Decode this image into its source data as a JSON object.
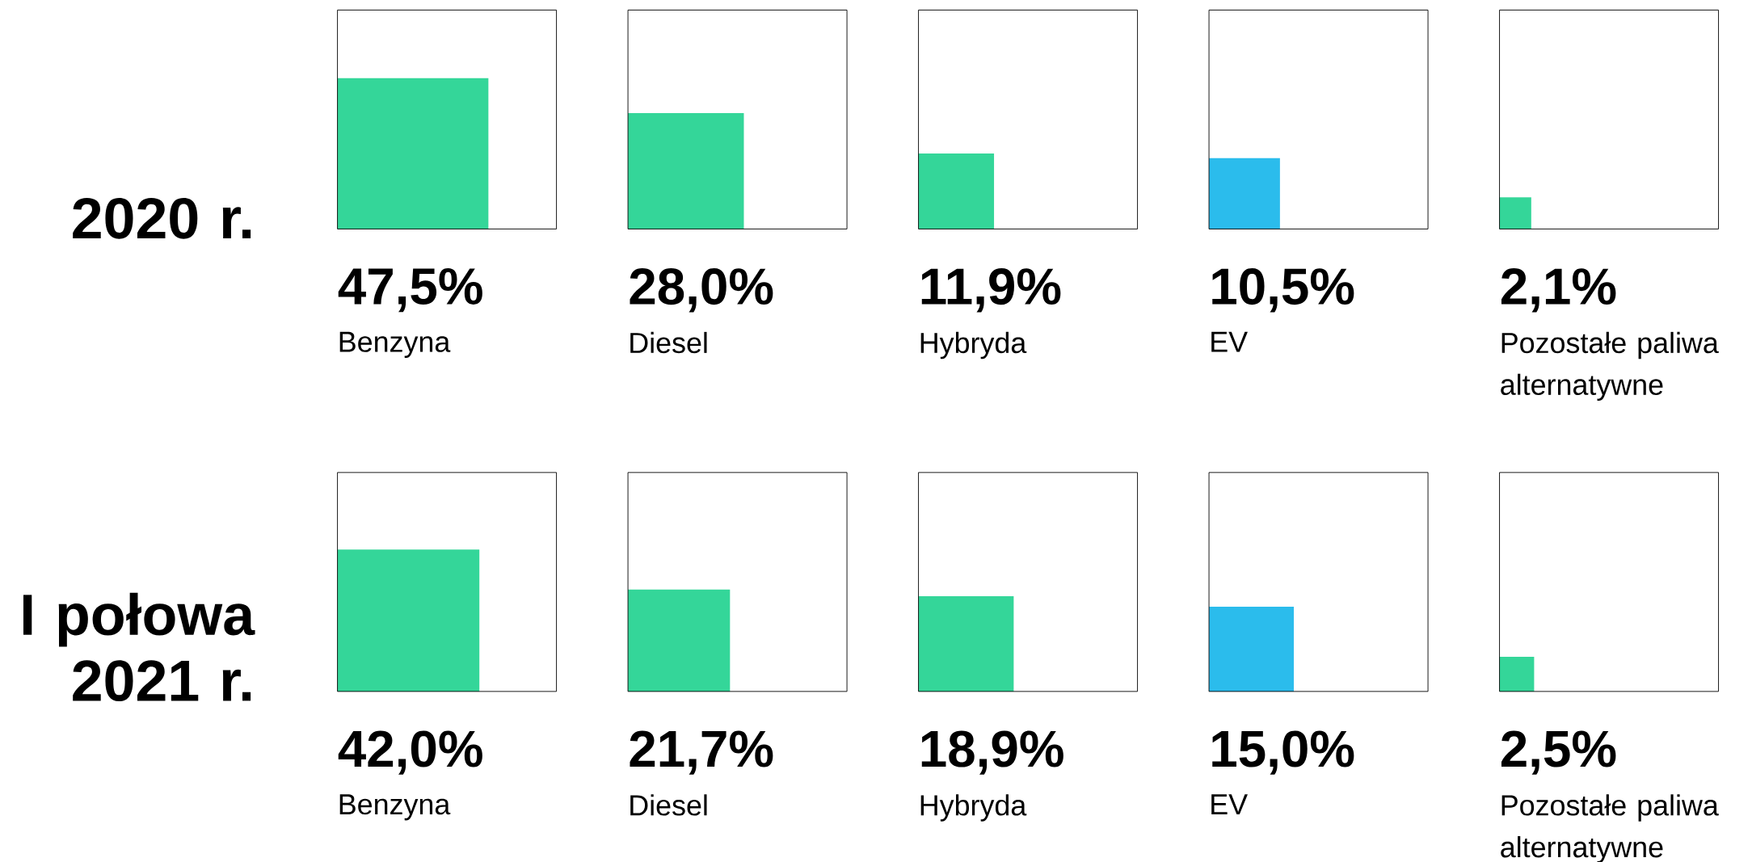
{
  "chart_data": [
    {
      "type": "other",
      "title": "2020 r.",
      "categories": [
        "Benzyna",
        "Diesel",
        "Hybryda",
        "EV",
        "Pozostałe paliwa alternatywne"
      ],
      "values": [
        47.5,
        28.0,
        11.9,
        10.5,
        2.1
      ],
      "value_labels": [
        "47,5%",
        "28,0%",
        "11,9%",
        "10,5%",
        "2,1%"
      ],
      "colors": [
        "#34d699",
        "#34d699",
        "#34d699",
        "#2bbcec",
        "#34d699"
      ]
    },
    {
      "type": "other",
      "title": "I połowa 2021 r.",
      "categories": [
        "Benzyna",
        "Diesel",
        "Hybryda",
        "EV",
        "Pozostałe paliwa alternatywne"
      ],
      "values": [
        42.0,
        21.7,
        18.9,
        15.0,
        2.5
      ],
      "value_labels": [
        "42,0%",
        "21,7%",
        "18,9%",
        "15,0%",
        "2,5%"
      ],
      "colors": [
        "#34d699",
        "#34d699",
        "#34d699",
        "#2bbcec",
        "#34d699"
      ]
    }
  ]
}
